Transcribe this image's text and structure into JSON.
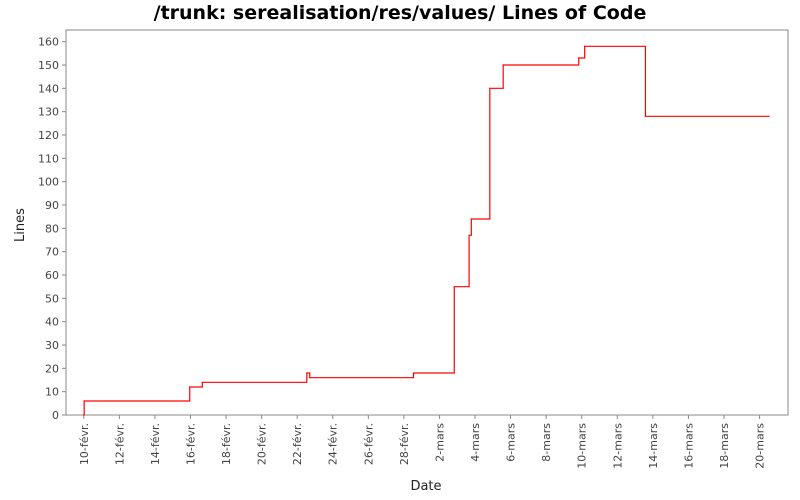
{
  "chart_data": {
    "type": "line",
    "title": "/trunk: serealisation/res/values/ Lines of Code",
    "xlabel": "Date",
    "ylabel": "Lines",
    "ylim": [
      0,
      165
    ],
    "xlim": [
      "2011-02-09",
      "2011-03-21"
    ],
    "grid": false,
    "legend": "none",
    "line_color": "#ff0000",
    "step": true,
    "yticks": [
      0,
      10,
      20,
      30,
      40,
      50,
      60,
      70,
      80,
      90,
      100,
      110,
      120,
      130,
      140,
      150,
      160
    ],
    "xticks": [
      {
        "date": "2011-02-10",
        "label": "10-févr."
      },
      {
        "date": "2011-02-12",
        "label": "12-févr."
      },
      {
        "date": "2011-02-14",
        "label": "14-févr."
      },
      {
        "date": "2011-02-16",
        "label": "16-févr."
      },
      {
        "date": "2011-02-18",
        "label": "18-févr."
      },
      {
        "date": "2011-02-20",
        "label": "20-févr."
      },
      {
        "date": "2011-02-22",
        "label": "22-févr."
      },
      {
        "date": "2011-02-24",
        "label": "24-févr."
      },
      {
        "date": "2011-02-26",
        "label": "26-févr."
      },
      {
        "date": "2011-02-28",
        "label": "28-févr."
      },
      {
        "date": "2011-03-02",
        "label": "2-mars"
      },
      {
        "date": "2011-03-04",
        "label": "4-mars"
      },
      {
        "date": "2011-03-06",
        "label": "6-mars"
      },
      {
        "date": "2011-03-08",
        "label": "8-mars"
      },
      {
        "date": "2011-03-10",
        "label": "10-mars"
      },
      {
        "date": "2011-03-12",
        "label": "12-mars"
      },
      {
        "date": "2011-03-14",
        "label": "14-mars"
      },
      {
        "date": "2011-03-16",
        "label": "16-mars"
      },
      {
        "date": "2011-03-18",
        "label": "18-mars"
      },
      {
        "date": "2011-03-20",
        "label": "20-mars"
      }
    ],
    "series": [
      {
        "points": [
          {
            "x": "2011-02-10 00:00",
            "y": 0
          },
          {
            "x": "2011-02-10 00:30",
            "y": 6
          },
          {
            "x": "2011-02-15 23:00",
            "y": 12
          },
          {
            "x": "2011-02-16 16:00",
            "y": 14
          },
          {
            "x": "2011-02-22 13:00",
            "y": 18
          },
          {
            "x": "2011-02-22 17:00",
            "y": 16
          },
          {
            "x": "2011-02-28 13:00",
            "y": 18
          },
          {
            "x": "2011-03-02 20:00",
            "y": 55
          },
          {
            "x": "2011-03-03 16:00",
            "y": 77
          },
          {
            "x": "2011-03-03 19:00",
            "y": 84
          },
          {
            "x": "2011-03-04 20:00",
            "y": 140
          },
          {
            "x": "2011-03-05 14:00",
            "y": 150
          },
          {
            "x": "2011-03-09 20:00",
            "y": 153
          },
          {
            "x": "2011-03-10 04:00",
            "y": 158
          },
          {
            "x": "2011-03-13 14:00",
            "y": 128
          },
          {
            "x": "2011-03-20 13:00",
            "y": 128
          }
        ]
      }
    ]
  }
}
